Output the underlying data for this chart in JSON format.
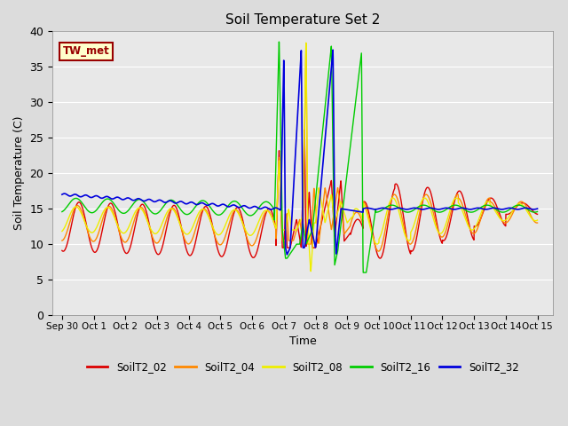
{
  "title": "Soil Temperature Set 2",
  "xlabel": "Time",
  "ylabel": "Soil Temperature (C)",
  "ylim": [
    0,
    40
  ],
  "xlim": [
    -0.3,
    15.5
  ],
  "annotation_text": "TW_met",
  "annotation_bg": "#ffffcc",
  "annotation_border": "#990000",
  "series_colors": {
    "SoilT2_02": "#dd0000",
    "SoilT2_04": "#ff8800",
    "SoilT2_08": "#eeee00",
    "SoilT2_16": "#00cc00",
    "SoilT2_32": "#0000dd"
  },
  "bg_color": "#e8e8e8",
  "grid_color": "#ffffff",
  "xtick_labels": [
    "Sep 30",
    "Oct 1",
    "Oct 2",
    "Oct 3",
    "Oct 4",
    "Oct 5",
    "Oct 6",
    "Oct 7",
    "Oct 8",
    "Oct 9",
    "Oct 10",
    "Oct 11",
    "Oct 12",
    "Oct 13",
    "Oct 14",
    "Oct 15"
  ],
  "xtick_positions": [
    0,
    1,
    2,
    3,
    4,
    5,
    6,
    7,
    8,
    9,
    10,
    11,
    12,
    13,
    14,
    15
  ],
  "ytick_positions": [
    0,
    5,
    10,
    15,
    20,
    25,
    30,
    35,
    40
  ],
  "figsize": [
    6.4,
    4.8
  ],
  "dpi": 100
}
